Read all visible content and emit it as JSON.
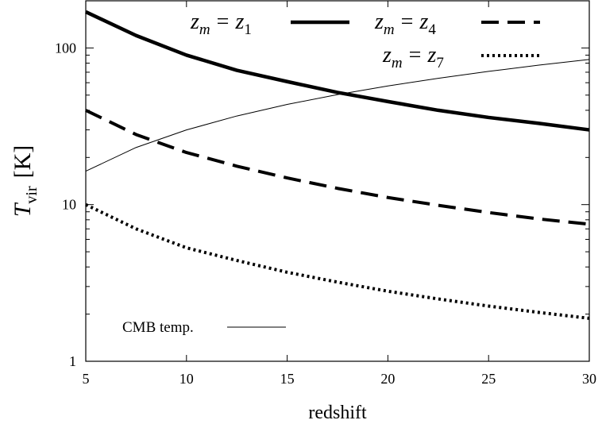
{
  "chart_data": {
    "type": "line",
    "title": "",
    "xlabel": "redshift",
    "ylabel_symbol": "T",
    "ylabel_sub": "vir",
    "ylabel_unit": "[K]",
    "xlim": [
      5,
      30
    ],
    "ylim": [
      1,
      200
    ],
    "yscale": "log",
    "xticks": [
      5,
      10,
      15,
      20,
      25,
      30
    ],
    "yticks": [
      1,
      10,
      100
    ],
    "legend_position": "top-right",
    "series": [
      {
        "name": "z_m = z_1",
        "legend_main": "z",
        "legend_main_sub": "m",
        "legend_eq": "=",
        "legend_rhs": "z",
        "legend_rhs_sub": "1",
        "style": "solid-thick",
        "x": [
          5,
          7.5,
          10,
          12.5,
          15,
          17.5,
          20,
          22.5,
          25,
          27.5,
          30
        ],
        "y": [
          170,
          120,
          90,
          72,
          61,
          52,
          45.5,
          40,
          36,
          33,
          30
        ]
      },
      {
        "name": "z_m = z_4",
        "legend_main": "z",
        "legend_main_sub": "m",
        "legend_eq": "=",
        "legend_rhs": "z",
        "legend_rhs_sub": "4",
        "style": "dashed",
        "x": [
          5,
          7.5,
          10,
          12.5,
          15,
          17.5,
          20,
          22.5,
          25,
          27.5,
          30
        ],
        "y": [
          40,
          28,
          21.5,
          17.6,
          14.8,
          12.7,
          11.1,
          9.9,
          8.9,
          8.1,
          7.5
        ]
      },
      {
        "name": "z_m = z_7",
        "legend_main": "z",
        "legend_main_sub": "m",
        "legend_eq": "=",
        "legend_rhs": "z",
        "legend_rhs_sub": "7",
        "style": "dotted",
        "x": [
          5,
          7.5,
          10,
          12.5,
          15,
          17.5,
          20,
          22.5,
          25,
          27.5,
          30
        ],
        "y": [
          10,
          7,
          5.3,
          4.4,
          3.7,
          3.2,
          2.8,
          2.5,
          2.25,
          2.05,
          1.88
        ]
      },
      {
        "name": "CMB temp.",
        "legend_label": "CMB temp.",
        "style": "solid-thin",
        "x": [
          5,
          7.5,
          10,
          12.5,
          15,
          17.5,
          20,
          22.5,
          25,
          27.5,
          30
        ],
        "y": [
          16.35,
          23.16,
          29.97,
          36.79,
          43.6,
          50.41,
          57.23,
          64.04,
          70.85,
          77.67,
          84.48
        ]
      }
    ]
  }
}
